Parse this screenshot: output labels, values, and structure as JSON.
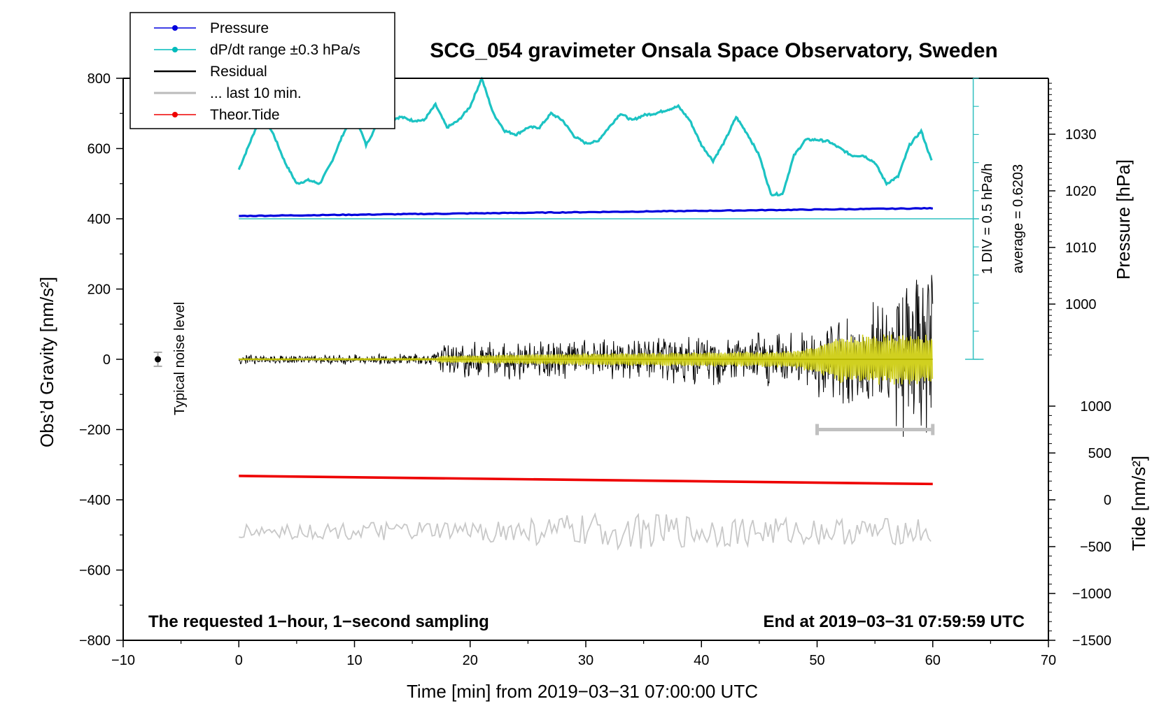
{
  "chart_data": {
    "type": "line",
    "title": "SCG_054 gravimeter Onsala Space Observatory, Sweden",
    "xlabel": "Time [min] from 2019−03−31 07:00:00 UTC",
    "ylabel_left": "Obs’d Gravity [nm/s²]",
    "ylabel_right_top": "Pressure [hPa]",
    "ylabel_right_bottom": "Tide [nm/s²]",
    "xlim": [
      -10,
      70
    ],
    "ylim_left": [
      -800,
      800
    ],
    "x_ticks": [
      {
        "value": -10,
        "label": "−10"
      },
      {
        "value": 0,
        "label": "0"
      },
      {
        "value": 10,
        "label": "10"
      },
      {
        "value": 20,
        "label": "20"
      },
      {
        "value": 30,
        "label": "30"
      },
      {
        "value": 40,
        "label": "40"
      },
      {
        "value": 50,
        "label": "50"
      },
      {
        "value": 60,
        "label": "60"
      },
      {
        "value": 70,
        "label": "70"
      }
    ],
    "y_ticks_left": [
      {
        "value": 800,
        "label": "800"
      },
      {
        "value": 600,
        "label": "600"
      },
      {
        "value": 400,
        "label": "400"
      },
      {
        "value": 200,
        "label": "200"
      },
      {
        "value": 0,
        "label": "0"
      },
      {
        "value": -200,
        "label": "−200"
      },
      {
        "value": -400,
        "label": "−400"
      },
      {
        "value": -600,
        "label": "−600"
      },
      {
        "value": -800,
        "label": "−800"
      }
    ],
    "pressure_ticks": [
      {
        "hpa": 1030,
        "label": "1030"
      },
      {
        "hpa": 1020,
        "label": "1020"
      },
      {
        "hpa": 1010,
        "label": "1010"
      },
      {
        "hpa": 1000,
        "label": "1000"
      }
    ],
    "tide_ticks": [
      {
        "value": 1000,
        "label": "1000"
      },
      {
        "value": 500,
        "label": "500"
      },
      {
        "value": 0,
        "label": "0"
      },
      {
        "value": -500,
        "label": "−500"
      },
      {
        "value": -1000,
        "label": "−1000"
      },
      {
        "value": -1500,
        "label": "−1500"
      }
    ],
    "legend": [
      {
        "label": "Pressure",
        "color": "#0000dd",
        "marker": true
      },
      {
        "label": "dP/dt range ±0.3 hPa/s",
        "color": "#00bbbb",
        "marker": true
      },
      {
        "label": "Residual",
        "color": "#000000",
        "marker": false
      },
      {
        "label": "... last 10 min.",
        "color": "#bbbbbb",
        "marker": false
      },
      {
        "label": "Theor.Tide",
        "color": "#ee0000",
        "marker": true
      }
    ],
    "series": {
      "dpdt": {
        "name": "dP/dt range ±0.3 hPa/s",
        "color": "#1cc3c3",
        "x": [
          0,
          1,
          2,
          3,
          4,
          5,
          6,
          7,
          8,
          9,
          10,
          11,
          12,
          13,
          14,
          15,
          16,
          17,
          18,
          19,
          20,
          21,
          22,
          23,
          24,
          25,
          26,
          27,
          28,
          29,
          30,
          31,
          32,
          33,
          34,
          35,
          36,
          37,
          38,
          39,
          40,
          41,
          42,
          43,
          44,
          45,
          46,
          47,
          48,
          49,
          50,
          51,
          52,
          53,
          54,
          55,
          56,
          57,
          58,
          59,
          60
        ],
        "y": [
          540,
          620,
          700,
          640,
          560,
          500,
          510,
          500,
          560,
          640,
          700,
          610,
          670,
          680,
          690,
          680,
          680,
          725,
          660,
          680,
          720,
          800,
          700,
          650,
          640,
          660,
          660,
          700,
          680,
          635,
          615,
          620,
          660,
          700,
          680,
          695,
          700,
          710,
          720,
          680,
          610,
          565,
          620,
          690,
          640,
          580,
          470,
          470,
          580,
          625,
          625,
          620,
          600,
          580,
          580,
          560,
          500,
          520,
          610,
          650,
          555
        ]
      },
      "pressure": {
        "name": "Pressure",
        "color": "#0000dd",
        "x": [
          0,
          60
        ],
        "y": [
          408,
          430
        ]
      },
      "tide": {
        "name": "Theor.Tide",
        "color": "#ee0000",
        "x": [
          0,
          60
        ],
        "y": [
          -332,
          -355
        ]
      },
      "residual_envelope": {
        "name": "Residual",
        "color": "#000000",
        "x": [
          0,
          10,
          17,
          17.5,
          20,
          30,
          40,
          45,
          49,
          52,
          55,
          57,
          59,
          59.5,
          60
        ],
        "y": [
          14,
          15,
          18,
          40,
          60,
          55,
          80,
          85,
          100,
          145,
          170,
          210,
          260,
          270,
          250
        ]
      },
      "last10_envelope": {
        "name": "... last 10 min.",
        "color": "#c8c8c8",
        "center": -490,
        "x": [
          0,
          20,
          30,
          40,
          45,
          50,
          60
        ],
        "y": [
          22,
          28,
          50,
          48,
          42,
          38,
          38
        ]
      },
      "yellow_envelope": {
        "color": "#d0d020",
        "x": [
          0,
          17,
          17.5,
          30,
          45,
          48,
          50,
          52,
          58,
          60
        ],
        "y": [
          2,
          3,
          10,
          18,
          22,
          25,
          40,
          70,
          75,
          70
        ]
      }
    },
    "pressure_scale": {
      "div_label": "1 DIV = 0.5 hPa/h",
      "average_label": "average = 0.6203"
    },
    "noise_indicator": {
      "label": "Typical noise level",
      "x": -7,
      "y": 0,
      "err": 20
    },
    "last10_bar": {
      "x_start": 50,
      "x_end": 60,
      "y": -200
    },
    "notes": {
      "left": "The requested 1−hour, 1−second sampling",
      "right": "End at 2019−03−31 07:59:59 UTC"
    }
  }
}
